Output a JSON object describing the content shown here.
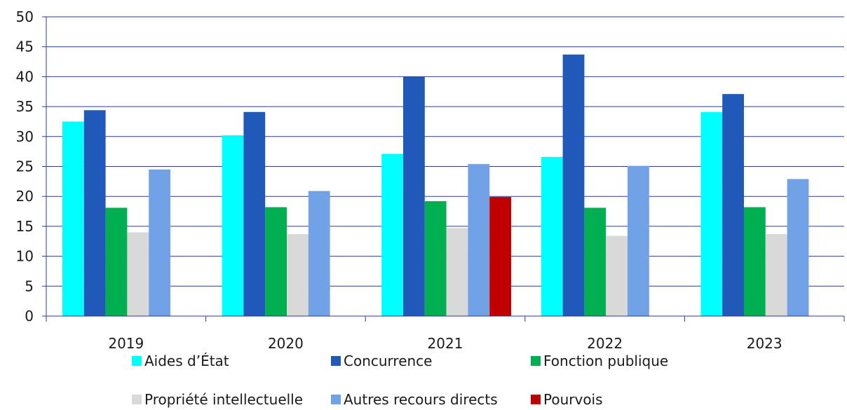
{
  "chart_data": {
    "type": "bar",
    "categories": [
      "2019",
      "2020",
      "2021",
      "2022",
      "2023"
    ],
    "series": [
      {
        "name": "Aides d’État",
        "color": "#00ffff",
        "values": [
          32.5,
          30.2,
          27.1,
          26.6,
          34.1
        ]
      },
      {
        "name": "Concurrence",
        "color": "#2059b8",
        "values": [
          34.4,
          34.1,
          40.0,
          43.7,
          37.1
        ]
      },
      {
        "name": "Fonction publique",
        "color": "#00b050",
        "values": [
          18.1,
          18.2,
          19.2,
          18.1,
          18.2
        ]
      },
      {
        "name": "Propriété intellectuelle",
        "color": "#d9d9d9",
        "values": [
          14.0,
          13.7,
          14.7,
          13.4,
          13.7
        ]
      },
      {
        "name": "Autres recours directs",
        "color": "#72a2e6",
        "values": [
          24.5,
          20.9,
          25.4,
          25.1,
          22.9
        ]
      },
      {
        "name": "Pourvois",
        "color": "#c00000",
        "values": [
          null,
          null,
          19.9,
          null,
          null
        ]
      }
    ],
    "ylim": [
      0,
      50
    ],
    "yticks": [
      0,
      5,
      10,
      15,
      20,
      25,
      30,
      35,
      40,
      45,
      50
    ],
    "grid": true,
    "legend_position": "bottom",
    "title": "",
    "xlabel": "",
    "ylabel": ""
  }
}
